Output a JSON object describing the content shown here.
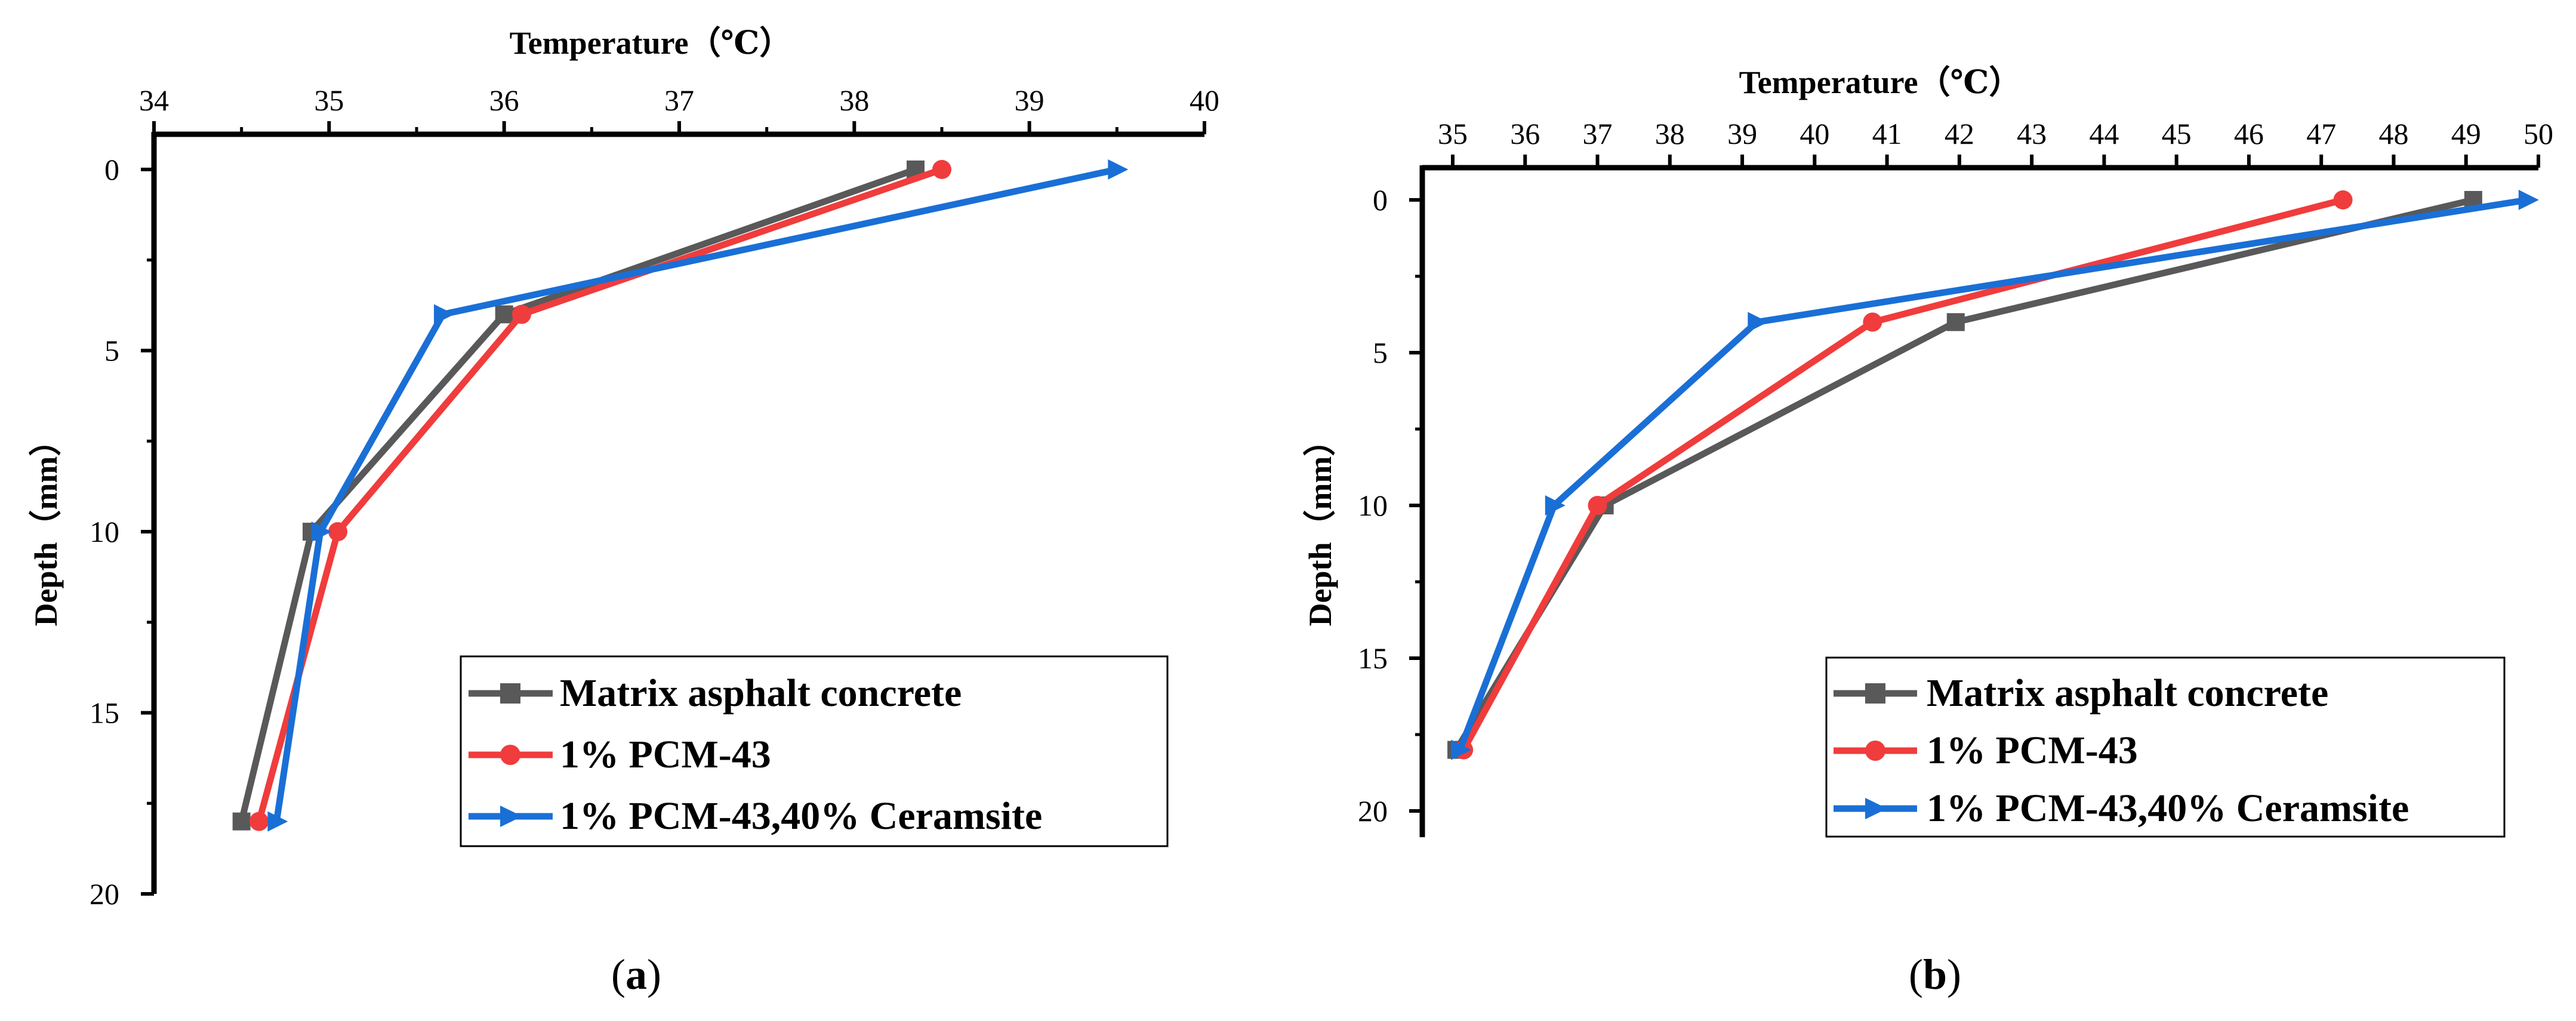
{
  "chart_data": [
    {
      "type": "line",
      "panel_label": "a",
      "xlabel": "Temperature（℃）",
      "ylabel": "Depth（mm）",
      "x_axis_position": "top",
      "y_inverted": true,
      "xlim": [
        34,
        40
      ],
      "ylim": [
        0,
        20
      ],
      "x_ticks": [
        "34",
        "35",
        "36",
        "37",
        "38",
        "39",
        "40"
      ],
      "y_ticks": [
        "0",
        "5",
        "10",
        "15",
        "20"
      ],
      "grid": false,
      "legend_position": "bottom-right",
      "series": [
        {
          "name": "Matrix asphalt concrete",
          "color": "#595959",
          "marker": "square",
          "temperature": [
            38.35,
            36.0,
            34.9,
            34.5
          ],
          "depth": [
            0,
            4,
            10,
            18
          ]
        },
        {
          "name": "1% PCM-43",
          "color": "#f03c3c",
          "marker": "circle",
          "temperature": [
            38.5,
            36.1,
            35.05,
            34.6
          ],
          "depth": [
            0,
            4,
            10,
            18
          ]
        },
        {
          "name": "1% PCM-43,40% Ceramsite",
          "color": "#1a6fd6",
          "marker": "triangle-right",
          "temperature": [
            39.5,
            35.65,
            34.95,
            34.7
          ],
          "depth": [
            0,
            4,
            10,
            18
          ]
        }
      ]
    },
    {
      "type": "line",
      "panel_label": "b",
      "xlabel": "Temperature（℃）",
      "ylabel": "Depth（mm）",
      "x_axis_position": "top",
      "y_inverted": true,
      "xlim": [
        35,
        50
      ],
      "ylim": [
        -1,
        20
      ],
      "x_ticks": [
        "35",
        "36",
        "37",
        "38",
        "39",
        "40",
        "41",
        "42",
        "43",
        "44",
        "45",
        "46",
        "47",
        "48",
        "49",
        "50"
      ],
      "y_ticks": [
        "0",
        "5",
        "10",
        "15",
        "20"
      ],
      "grid": false,
      "legend_position": "bottom-right",
      "series": [
        {
          "name": "Matrix asphalt concrete",
          "color": "#595959",
          "marker": "square",
          "temperature": [
            49.1,
            41.95,
            37.1,
            35.05
          ],
          "depth": [
            0,
            4,
            10,
            18
          ]
        },
        {
          "name": "1% PCM-43",
          "color": "#f03c3c",
          "marker": "circle",
          "temperature": [
            47.3,
            40.8,
            37.0,
            35.15
          ],
          "depth": [
            0,
            4,
            10,
            18
          ]
        },
        {
          "name": "1% PCM-43,40% Ceramsite",
          "color": "#1a6fd6",
          "marker": "triangle-right",
          "temperature": [
            49.85,
            39.2,
            36.4,
            35.1
          ],
          "depth": [
            0,
            4,
            10,
            18
          ]
        }
      ]
    }
  ],
  "captions": [
    {
      "open": "(",
      "letter": "a",
      "close": ")"
    },
    {
      "open": "(",
      "letter": "b",
      "close": ")"
    }
  ]
}
